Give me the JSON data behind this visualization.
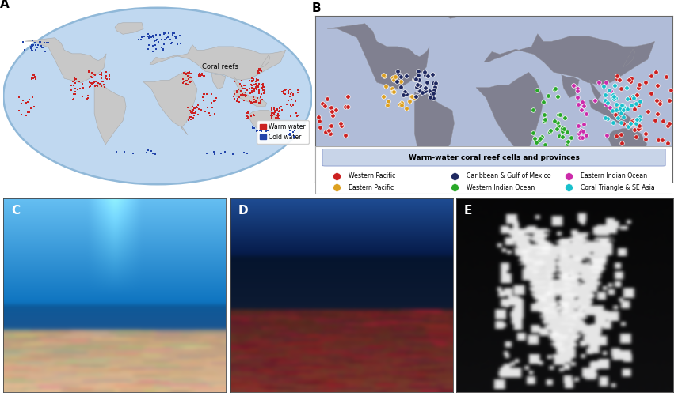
{
  "panel_labels": [
    "A",
    "B",
    "C",
    "D",
    "E"
  ],
  "panel_label_fontsize": 11,
  "panel_label_fontweight": "bold",
  "globe_bg": "#c0d8f0",
  "globe_edge": "#90b8d8",
  "globe_land": "#c8c8c8",
  "globe_land_edge": "#aaaaaa",
  "flat_map_bg": "#b0bcd8",
  "flat_map_land": "#808090",
  "flat_map_land_edge": "#909098",
  "reef_warm_color": "#cc2222",
  "reef_cold_color": "#2244aa",
  "legend_a_title": "Coral reefs",
  "legend_a_warm_label": "Warm water",
  "legend_a_cold_label": "Cold water",
  "legend_b_title": "Warm-water coral reef cells and provinces",
  "legend_b_title_bg": "#c8d4e8",
  "legend_b_outer_bg": "#ffffff",
  "legend_b_items": [
    {
      "label": "Western Pacific",
      "color": "#cc2020",
      "row": 0,
      "col": 0
    },
    {
      "label": "Eastern Pacific",
      "color": "#dda020",
      "row": 1,
      "col": 0
    },
    {
      "label": "Caribbean & Gulf of Mexico",
      "color": "#1e2860",
      "row": 0,
      "col": 1
    },
    {
      "label": "Western Indian Ocean",
      "color": "#28a828",
      "row": 1,
      "col": 1
    },
    {
      "label": "Eastern Indian Ocean",
      "color": "#cc2aaa",
      "row": 0,
      "col": 2
    },
    {
      "label": "Coral Triangle & SE Asia",
      "color": "#18c0cc",
      "row": 1,
      "col": 2
    }
  ],
  "bg_color": "#ffffff",
  "figure_width": 8.56,
  "figure_height": 5.01
}
